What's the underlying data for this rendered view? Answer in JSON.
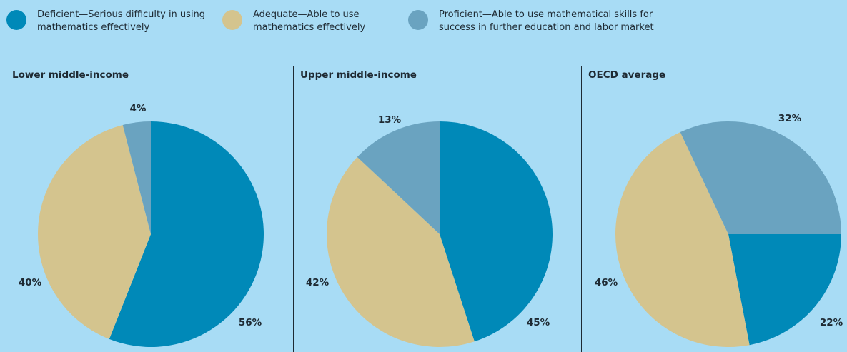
{
  "chart_data": [
    {
      "type": "pie",
      "title": "Lower middle-income",
      "categories": [
        "Deficient—Serious difficulty in using mathematics effectively",
        "Adequate—Able to use mathematics effectively",
        "Proficient—Able to use mathematical skills for success in further education and labor market"
      ],
      "values": [
        56,
        40,
        4
      ],
      "value_labels": [
        "56%",
        "40%",
        "4%"
      ],
      "colors": [
        "#0089b8",
        "#d4c48e",
        "#6aa3c0"
      ],
      "startangle": 0
    },
    {
      "type": "pie",
      "title": "Upper middle-income",
      "categories": [
        "Deficient—Serious difficulty in using mathematics effectively",
        "Adequate—Able to use mathematics effectively",
        "Proficient—Able to use mathematical skills for success in further education and labor market"
      ],
      "values": [
        45,
        42,
        13
      ],
      "value_labels": [
        "45%",
        "42%",
        "13%"
      ],
      "colors": [
        "#0089b8",
        "#d4c48e",
        "#6aa3c0"
      ],
      "startangle": 0
    },
    {
      "type": "pie",
      "title": "OECD average",
      "categories": [
        "Deficient—Serious difficulty in using mathematics effectively",
        "Adequate—Able to use mathematics effectively",
        "Proficient—Able to use mathematical skills for success in further education and labor market"
      ],
      "values": [
        22,
        46,
        32
      ],
      "value_labels": [
        "22%",
        "46%",
        "32%"
      ],
      "colors": [
        "#0089b8",
        "#d4c48e",
        "#6aa3c0"
      ],
      "startangle": 90
    }
  ]
}
